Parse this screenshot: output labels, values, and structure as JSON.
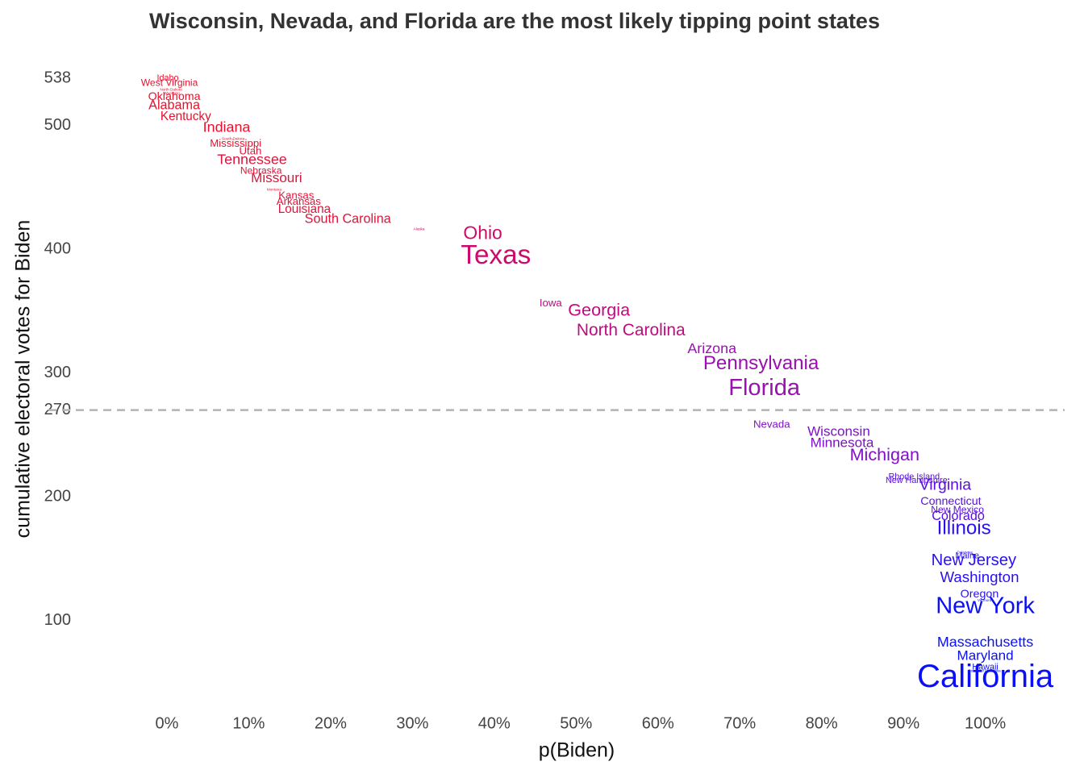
{
  "chart_data": {
    "type": "scatter",
    "title": "Wisconsin, Nevada, and Florida are the most likely tipping point states",
    "xlabel": "p(Biden)",
    "ylabel": "cumulative electoral votes for Biden",
    "labels": [
      "Idaho",
      "West Virginia",
      "North Dakota",
      "Wyoming",
      "Oklahoma",
      "Alabama",
      "Kentucky",
      "Indiana",
      "South Dakota",
      "Mississippi",
      "Utah",
      "Tennessee",
      "Nebraska",
      "Missouri",
      "Montana",
      "Kansas",
      "Arkansas",
      "Louisiana",
      "South Carolina",
      "Alaska",
      "Ohio",
      "Texas",
      "Iowa",
      "Georgia",
      "North Carolina",
      "Arizona",
      "Pennsylvania",
      "Florida",
      "Nevada",
      "Wisconsin",
      "Minnesota",
      "Michigan",
      "Rhode Island",
      "New Hampshire",
      "Virginia",
      "Connecticut",
      "New Mexico",
      "Colorado",
      "Illinois",
      "Delaware",
      "Maine",
      "New Jersey",
      "Washington",
      "Oregon",
      "Vermont",
      "New York",
      "Massachusetts",
      "Maryland",
      "Hawaii",
      "District of Columbia",
      "California"
    ],
    "x": [
      0.1,
      0.3,
      0.5,
      0.6,
      0.9,
      0.9,
      2.3,
      7.3,
      8.1,
      8.4,
      10.2,
      10.4,
      11.5,
      13.4,
      13.1,
      15.8,
      16.1,
      16.8,
      22.1,
      30.8,
      38.6,
      40.2,
      46.9,
      52.8,
      56.7,
      66.6,
      72.6,
      73.0,
      73.9,
      82.1,
      82.5,
      87.7,
      91.3,
      91.6,
      95.1,
      95.8,
      96.6,
      96.7,
      97.4,
      97.5,
      97.8,
      98.6,
      99.3,
      99.3,
      99.9,
      100,
      100,
      100,
      100,
      99.9,
      100
    ],
    "values": [
      538,
      534,
      529,
      526,
      523,
      516,
      507,
      498,
      489,
      485,
      479,
      472,
      463,
      457,
      448,
      443,
      438,
      432,
      424,
      416,
      412,
      394,
      356,
      350,
      334,
      319,
      307,
      287,
      258,
      252,
      243,
      233,
      216,
      213,
      209,
      196,
      189,
      184,
      174,
      155,
      152,
      148,
      134,
      121,
      116,
      111,
      82,
      71,
      62,
      59,
      53
    ],
    "sizes": [
      4,
      5,
      3,
      3,
      7,
      9,
      8,
      11,
      3,
      6,
      6,
      11,
      5,
      10,
      3,
      6,
      6,
      8,
      9,
      3,
      18,
      38,
      6,
      16,
      15,
      11,
      20,
      29,
      6,
      10,
      10,
      16,
      4,
      4,
      13,
      7,
      5,
      9,
      20,
      3,
      4,
      14,
      12,
      7,
      3,
      29,
      11,
      10,
      4,
      3,
      55
    ],
    "colors": [
      "#e8112d",
      "#e8112d",
      "#e8112d",
      "#e8112d",
      "#e8112d",
      "#e8112d",
      "#e8112d",
      "#e8112d",
      "#e8112d",
      "#e8112d",
      "#e0143a",
      "#e0143a",
      "#e0143a",
      "#e0143a",
      "#e0143a",
      "#e0143a",
      "#e0143a",
      "#e0143a",
      "#e0143a",
      "#cc0a6a",
      "#cc0a6a",
      "#cc0a6a",
      "#c00a80",
      "#c00a80",
      "#c00a80",
      "#9a10b0",
      "#9a10b0",
      "#9a10b0",
      "#8010c8",
      "#8010c8",
      "#8010c8",
      "#8010c8",
      "#5a10e0",
      "#5a10e0",
      "#5a10e0",
      "#5a10e0",
      "#5a10e0",
      "#5a10e0",
      "#2a10f0",
      "#2a10f0",
      "#2a10f0",
      "#2a10f0",
      "#2a10f0",
      "#2a10f0",
      "#0a10f5",
      "#0a10f5",
      "#0a10f5",
      "#0a10f5",
      "#0a10f5",
      "#0a10f5",
      "#0a10f5"
    ],
    "xlim": [
      -13.5,
      109.7
    ],
    "ylim": [
      28,
      559
    ],
    "xticks": [
      {
        "value": 0,
        "label": "0%"
      },
      {
        "value": 10,
        "label": "10%"
      },
      {
        "value": 20,
        "label": "20%"
      },
      {
        "value": 30,
        "label": "30%"
      },
      {
        "value": 40,
        "label": "40%"
      },
      {
        "value": 50,
        "label": "50%"
      },
      {
        "value": 60,
        "label": "60%"
      },
      {
        "value": 70,
        "label": "70%"
      },
      {
        "value": 80,
        "label": "80%"
      },
      {
        "value": 90,
        "label": "90%"
      },
      {
        "value": 100,
        "label": "100%"
      }
    ],
    "yticks": [
      100,
      200,
      270,
      300,
      400,
      500,
      538
    ],
    "reference_line": 270,
    "grid": false
  }
}
